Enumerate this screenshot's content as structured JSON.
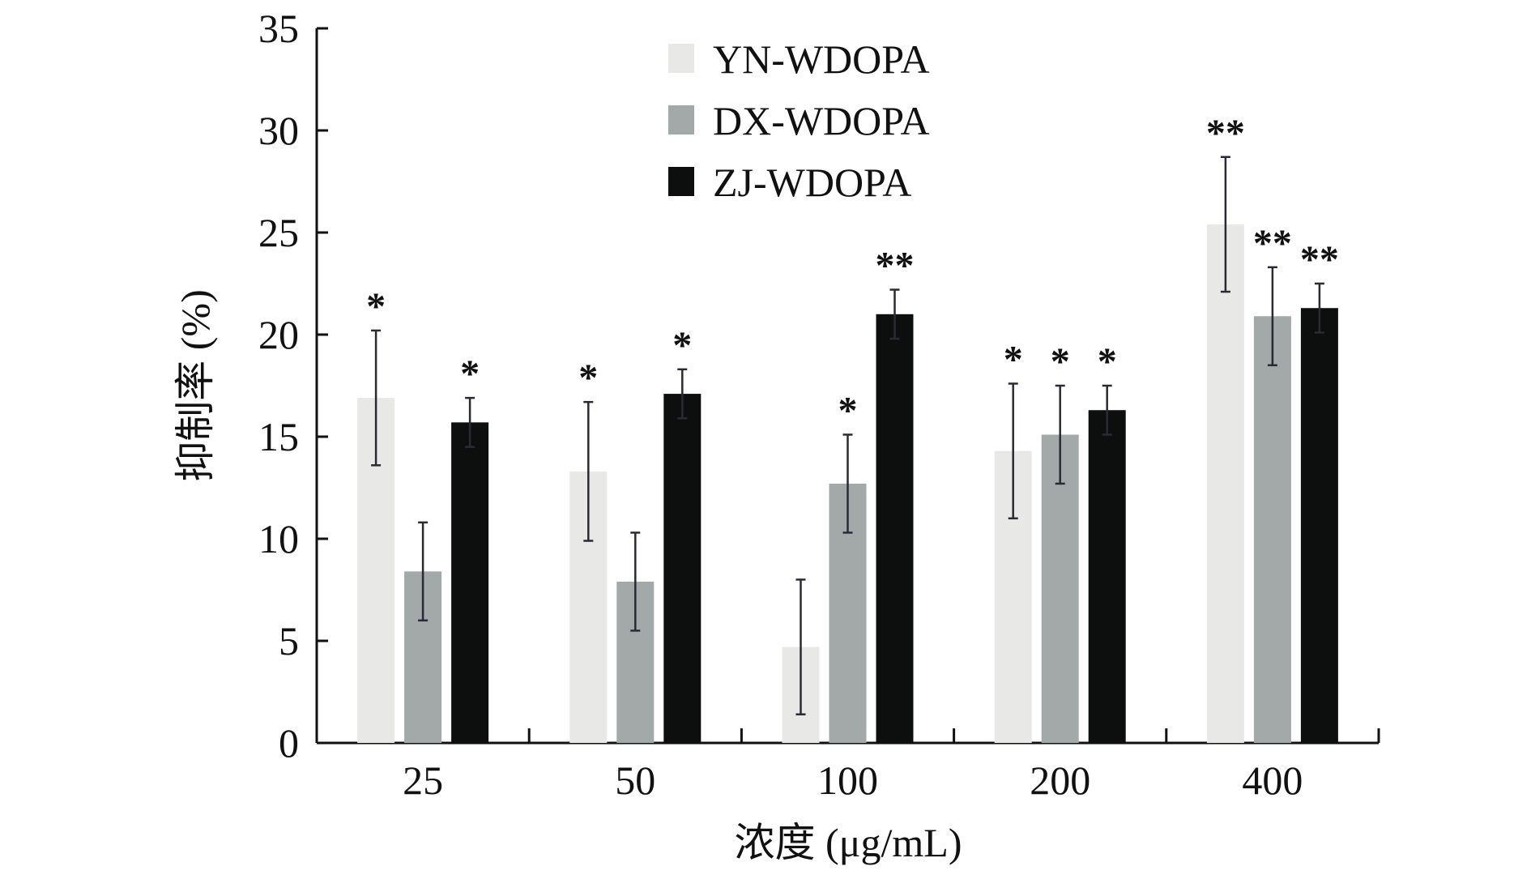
{
  "chart_data": {
    "type": "bar",
    "title": "",
    "xlabel": "浓度 (μg/mL)",
    "ylabel": "抑制率 (%)",
    "categories": [
      "25",
      "50",
      "100",
      "200",
      "400"
    ],
    "ylim": [
      0,
      35
    ],
    "yticks": [
      "0",
      "5",
      "10",
      "15",
      "20",
      "25",
      "30",
      "35"
    ],
    "grid": false,
    "legend_position": "top-center",
    "series": [
      {
        "name": "YN-WDOPA",
        "color": "#e8e8e6",
        "values": [
          16.9,
          13.3,
          4.7,
          14.3,
          25.4
        ],
        "errors": [
          3.3,
          3.4,
          3.3,
          3.3,
          3.3
        ],
        "significance": [
          "*",
          "*",
          "",
          "*",
          "**"
        ]
      },
      {
        "name": "DX-WDOPA",
        "color": "#a3a8a8",
        "values": [
          8.4,
          7.9,
          12.7,
          15.1,
          20.9
        ],
        "errors": [
          2.4,
          2.4,
          2.4,
          2.4,
          2.4
        ],
        "significance": [
          "",
          "",
          "*",
          "*",
          "**"
        ]
      },
      {
        "name": "ZJ-WDOPA",
        "color": "#0d0f0e",
        "values": [
          15.7,
          17.1,
          21.0,
          16.3,
          21.3
        ],
        "errors": [
          1.2,
          1.2,
          1.2,
          1.2,
          1.2
        ],
        "significance": [
          "*",
          "*",
          "**",
          "*",
          "**"
        ]
      }
    ]
  }
}
